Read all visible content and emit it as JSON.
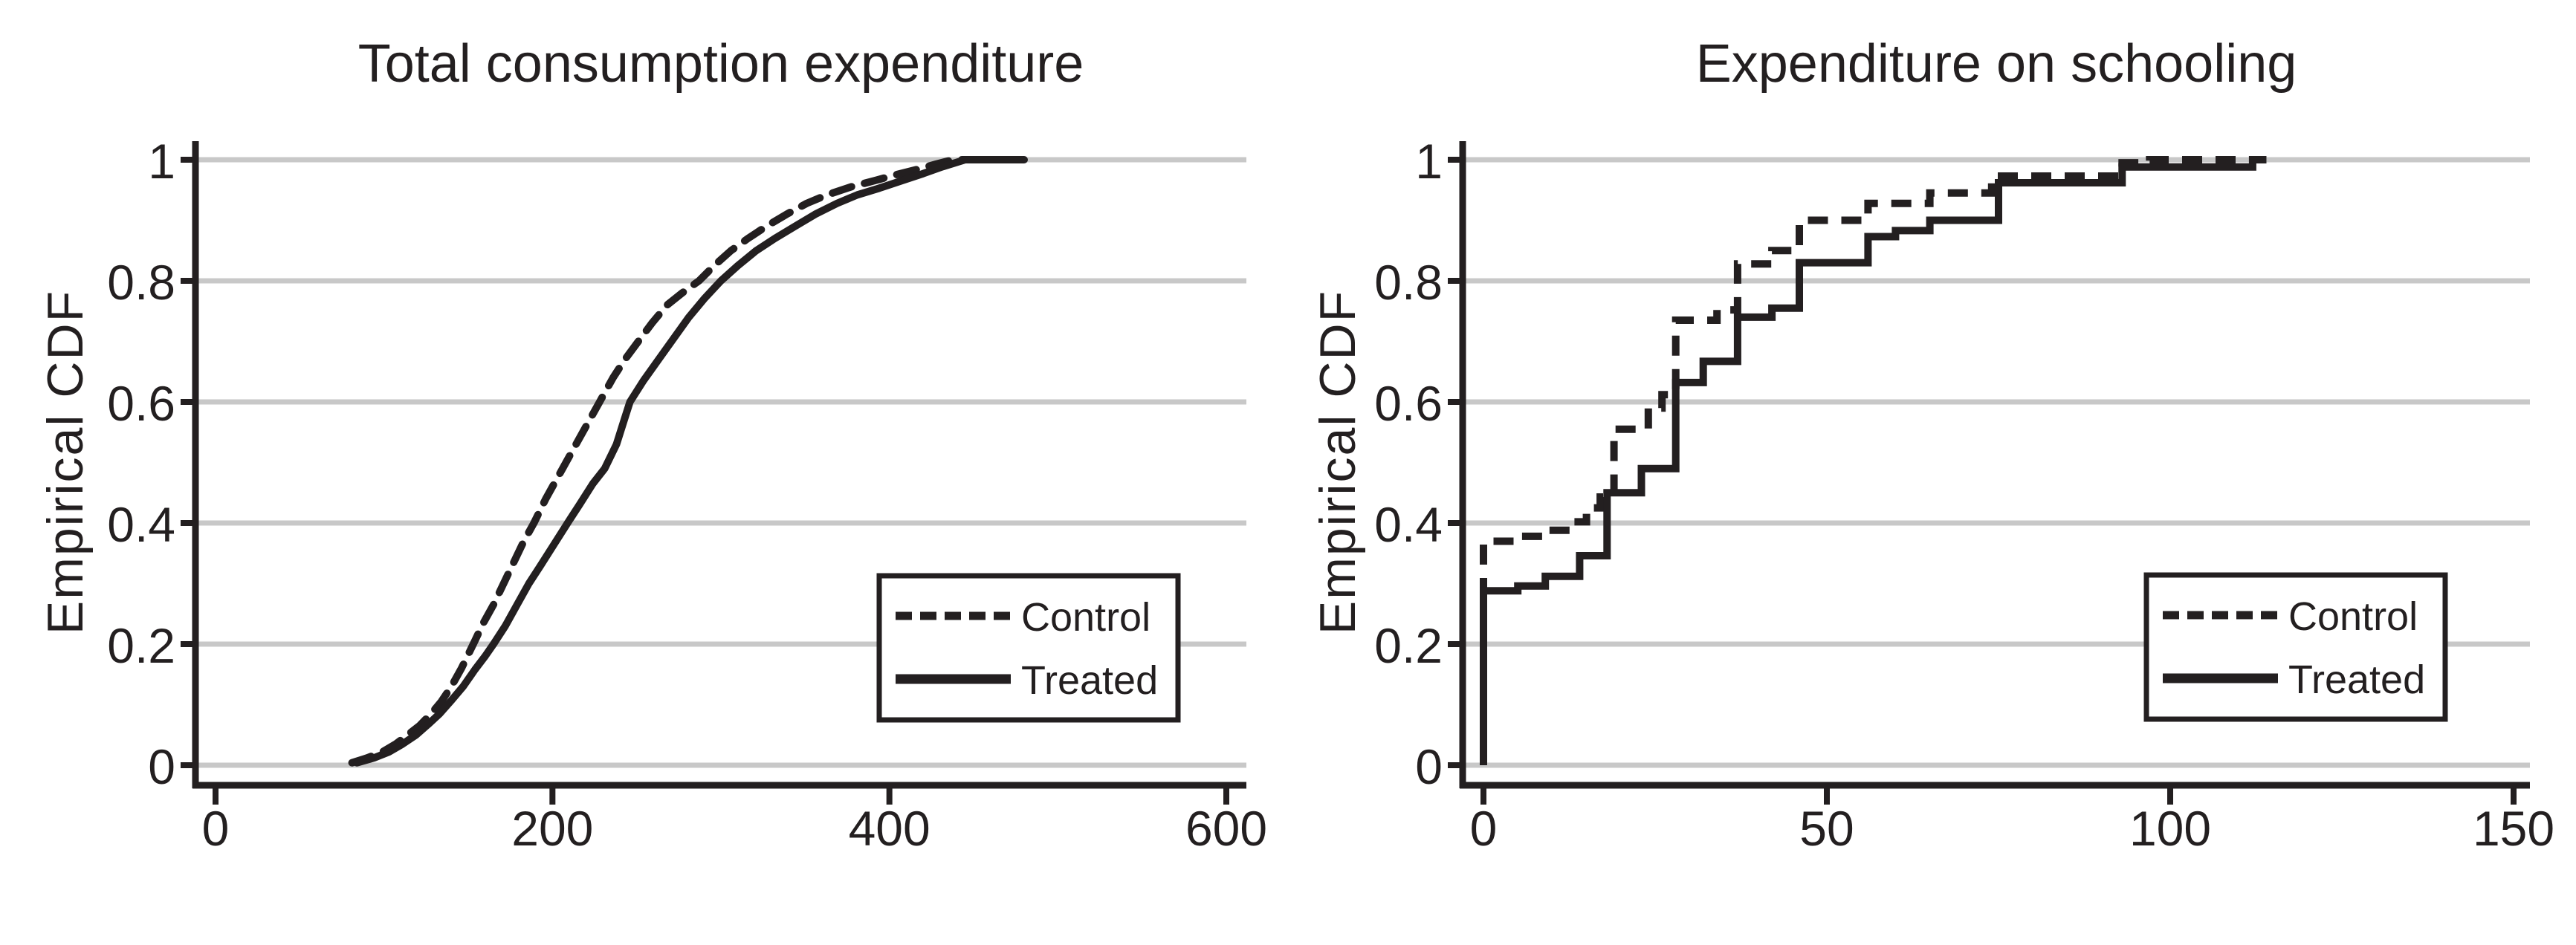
{
  "figure": {
    "background": "#ffffff",
    "description": "Two empirical CDF panels comparing Control and Treated groups"
  },
  "colors": {
    "line": "#231f20",
    "grid": "#c8c8c8",
    "text": "#231f20",
    "legend_background": "#ffffff"
  },
  "legend": {
    "items": [
      {
        "label": "Control",
        "style": "dashed"
      },
      {
        "label": "Treated",
        "style": "solid"
      }
    ]
  },
  "chart_data": [
    {
      "type": "line",
      "subtype": "ecdf",
      "title": "Total consumption expenditure",
      "xlabel": "",
      "ylabel": "Empirical CDF",
      "xlim": [
        0,
        600
      ],
      "ylim": [
        0,
        1
      ],
      "xticks": [
        0,
        200,
        400,
        600
      ],
      "xtick_labels": [
        "0",
        "200",
        "400",
        "600"
      ],
      "yticks": [
        1,
        0.8,
        0.6,
        0.4,
        0.2,
        0
      ],
      "ytick_labels": [
        "1",
        "0.8",
        "0.6",
        "0.4",
        "0.2",
        "0"
      ],
      "grid": "horizontal",
      "legend_position": "inside lower-right",
      "series": [
        {
          "name": "Control",
          "style": "dashed",
          "points": [
            [
              81,
              0.004
            ],
            [
              90,
              0.012
            ],
            [
              99,
              0.022
            ],
            [
              107,
              0.035
            ],
            [
              114,
              0.05
            ],
            [
              121,
              0.065
            ],
            [
              128,
              0.085
            ],
            [
              134,
              0.105
            ],
            [
              140,
              0.13
            ],
            [
              146,
              0.16
            ],
            [
              153,
              0.2
            ],
            [
              159,
              0.235
            ],
            [
              165,
              0.265
            ],
            [
              171,
              0.3
            ],
            [
              177,
              0.335
            ],
            [
              183,
              0.37
            ],
            [
              189,
              0.4
            ],
            [
              196,
              0.44
            ],
            [
              202,
              0.47
            ],
            [
              208,
              0.5
            ],
            [
              215,
              0.535
            ],
            [
              221,
              0.565
            ],
            [
              228,
              0.6
            ],
            [
              236,
              0.64
            ],
            [
              243,
              0.67
            ],
            [
              251,
              0.7
            ],
            [
              259,
              0.73
            ],
            [
              268,
              0.76
            ],
            [
              277,
              0.78
            ],
            [
              287,
              0.8
            ],
            [
              296,
              0.825
            ],
            [
              306,
              0.85
            ],
            [
              316,
              0.87
            ],
            [
              327,
              0.89
            ],
            [
              339,
              0.91
            ],
            [
              351,
              0.928
            ],
            [
              363,
              0.942
            ],
            [
              377,
              0.955
            ],
            [
              392,
              0.966
            ],
            [
              405,
              0.976
            ],
            [
              418,
              0.985
            ],
            [
              428,
              0.993
            ],
            [
              438,
              1.0
            ],
            [
              480,
              1.0
            ]
          ]
        },
        {
          "name": "Treated",
          "style": "solid",
          "points": [
            [
              84,
              0.004
            ],
            [
              94,
              0.012
            ],
            [
              103,
              0.022
            ],
            [
              111,
              0.035
            ],
            [
              119,
              0.05
            ],
            [
              126,
              0.067
            ],
            [
              133,
              0.085
            ],
            [
              140,
              0.107
            ],
            [
              147,
              0.13
            ],
            [
              154,
              0.158
            ],
            [
              160,
              0.18
            ],
            [
              165,
              0.2
            ],
            [
              172,
              0.23
            ],
            [
              179,
              0.265
            ],
            [
              186,
              0.3
            ],
            [
              193,
              0.33
            ],
            [
              201,
              0.365
            ],
            [
              209,
              0.4
            ],
            [
              216,
              0.43
            ],
            [
              224,
              0.465
            ],
            [
              231,
              0.49
            ],
            [
              238,
              0.53
            ],
            [
              242,
              0.565
            ],
            [
              246,
              0.6
            ],
            [
              254,
              0.635
            ],
            [
              263,
              0.67
            ],
            [
              272,
              0.705
            ],
            [
              281,
              0.74
            ],
            [
              290,
              0.77
            ],
            [
              300,
              0.8
            ],
            [
              310,
              0.825
            ],
            [
              321,
              0.85
            ],
            [
              332,
              0.87
            ],
            [
              344,
              0.89
            ],
            [
              356,
              0.91
            ],
            [
              369,
              0.928
            ],
            [
              381,
              0.942
            ],
            [
              394,
              0.953
            ],
            [
              407,
              0.965
            ],
            [
              420,
              0.977
            ],
            [
              431,
              0.988
            ],
            [
              445,
              1.0
            ],
            [
              480,
              1.0
            ]
          ]
        }
      ]
    },
    {
      "type": "line",
      "subtype": "step-ecdf",
      "title": "Expenditure on schooling",
      "xlabel": "",
      "ylabel": "Empirical CDF",
      "xlim": [
        0,
        150
      ],
      "ylim": [
        0,
        1
      ],
      "xticks": [
        0,
        50,
        100,
        150
      ],
      "xtick_labels": [
        "0",
        "50",
        "100",
        "150"
      ],
      "yticks": [
        1,
        0.8,
        0.6,
        0.4,
        0.2,
        0
      ],
      "ytick_labels": [
        "1",
        "0.8",
        "0.6",
        "0.4",
        "0.2",
        "0"
      ],
      "grid": "horizontal",
      "legend_position": "inside lower-right",
      "series": [
        {
          "name": "Control",
          "style": "dashed",
          "step": true,
          "points": [
            [
              0,
              0.37
            ],
            [
              5,
              0.378
            ],
            [
              9,
              0.388
            ],
            [
              13,
              0.402
            ],
            [
              15,
              0.425
            ],
            [
              17,
              0.443
            ],
            [
              19,
              0.555
            ],
            [
              24,
              0.59
            ],
            [
              26,
              0.612
            ],
            [
              28,
              0.735
            ],
            [
              34,
              0.752
            ],
            [
              37,
              0.828
            ],
            [
              42,
              0.85
            ],
            [
              46,
              0.9
            ],
            [
              56,
              0.928
            ],
            [
              65,
              0.945
            ],
            [
              74,
              0.973
            ],
            [
              93,
              0.995
            ],
            [
              97,
              1.0
            ],
            [
              114,
              1.0
            ]
          ]
        },
        {
          "name": "Treated",
          "style": "solid",
          "step": true,
          "points": [
            [
              0,
              0.288
            ],
            [
              5,
              0.296
            ],
            [
              9,
              0.312
            ],
            [
              14,
              0.346
            ],
            [
              18,
              0.45
            ],
            [
              23,
              0.49
            ],
            [
              28,
              0.632
            ],
            [
              32,
              0.667
            ],
            [
              37,
              0.74
            ],
            [
              42,
              0.755
            ],
            [
              46,
              0.83
            ],
            [
              56,
              0.873
            ],
            [
              60,
              0.883
            ],
            [
              65,
              0.9
            ],
            [
              75,
              0.962
            ],
            [
              93,
              0.988
            ],
            [
              112,
              1.0
            ],
            [
              114,
              1.0
            ]
          ]
        }
      ]
    }
  ]
}
